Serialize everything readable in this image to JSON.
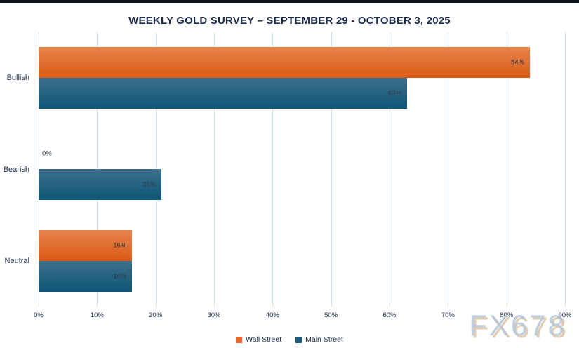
{
  "chart_data": {
    "type": "bar",
    "orientation": "horizontal",
    "title": "WEEKLY GOLD SURVEY – SEPTEMBER 29 - OCTOBER 3, 2025",
    "categories": [
      "Bullish",
      "Bearish",
      "Neutral"
    ],
    "series": [
      {
        "name": "Wall Street",
        "values": [
          84,
          0,
          16
        ],
        "gradient_top": "#E8834E",
        "gradient_bottom": "#DA5A13",
        "legend_color": "#E8682C"
      },
      {
        "name": "Main Street",
        "values": [
          63,
          21,
          16
        ],
        "gradient_top": "#3D6F8D",
        "gradient_bottom": "#0E5677",
        "legend_color": "#1E5A7B"
      }
    ],
    "value_suffix": "%",
    "xlim": [
      0,
      90
    ],
    "x_ticks": [
      "0%",
      "10%",
      "20%",
      "30%",
      "40%",
      "50%",
      "60%",
      "70%",
      "80%",
      "90%"
    ],
    "grid": "vertical",
    "legend_position": "bottom"
  },
  "watermark": "FX678",
  "colors": {
    "top_strip": "#10151F",
    "title_text": "#1B2B4A",
    "gridline": "#CBE0EF",
    "value_label": "#2E3A45"
  }
}
